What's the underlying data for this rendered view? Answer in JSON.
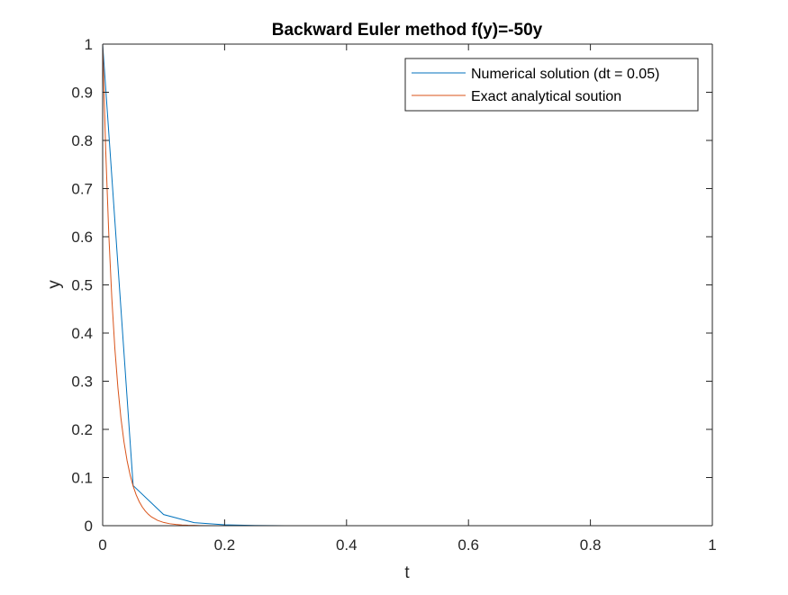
{
  "chart_data": {
    "type": "line",
    "title": "Backward Euler method f(y)=-50y",
    "xlabel": "t",
    "ylabel": "y",
    "xlim": [
      0,
      1
    ],
    "ylim": [
      0,
      1
    ],
    "xticks": [
      0,
      0.2,
      0.4,
      0.6,
      0.8,
      1
    ],
    "xtick_labels": [
      "0",
      "0.2",
      "0.4",
      "0.6",
      "0.8",
      "1"
    ],
    "yticks": [
      0,
      0.1,
      0.2,
      0.3,
      0.4,
      0.5,
      0.6,
      0.7,
      0.8,
      0.9,
      1
    ],
    "ytick_labels": [
      "0",
      "0.1",
      "0.2",
      "0.3",
      "0.4",
      "0.5",
      "0.6",
      "0.7",
      "0.8",
      "0.9",
      "1"
    ],
    "grid": false,
    "legend_position": "top-right",
    "series": [
      {
        "name": "Numerical solution (dt = 0.05)",
        "color": "#0072BD",
        "x": [
          0,
          0.05,
          0.1,
          0.15,
          0.2,
          0.25,
          0.3,
          0.35,
          0.4,
          0.45,
          0.5,
          0.55,
          0.6,
          0.65,
          0.7,
          0.75,
          0.8,
          0.85,
          0.9,
          0.95,
          1.0
        ],
        "y": [
          1,
          0.0833,
          0.0231,
          0.0064,
          0.0018,
          0.0005,
          0.0001,
          0,
          0,
          0,
          0,
          0,
          0,
          0,
          0,
          0,
          0,
          0,
          0,
          0,
          0
        ]
      },
      {
        "name": "Exact analytical soution",
        "color": "#D95319",
        "x": [
          0,
          0.005,
          0.01,
          0.015,
          0.02,
          0.025,
          0.03,
          0.035,
          0.04,
          0.045,
          0.05,
          0.055,
          0.06,
          0.065,
          0.07,
          0.075,
          0.08,
          0.09,
          0.1,
          0.11,
          0.12,
          0.13,
          0.14,
          0.15,
          0.16,
          0.18,
          0.2,
          0.25,
          0.3,
          0.4,
          0.5,
          0.6,
          0.7,
          0.8,
          0.9,
          1.0
        ],
        "y": [
          1,
          0.7788,
          0.6065,
          0.4724,
          0.3679,
          0.2865,
          0.2231,
          0.1738,
          0.1353,
          0.1054,
          0.0821,
          0.0639,
          0.0498,
          0.0388,
          0.0302,
          0.0235,
          0.0183,
          0.0111,
          0.0067,
          0.0041,
          0.0025,
          0.0015,
          0.0009,
          0.0006,
          0.0003,
          0.0001,
          5e-05,
          0,
          0,
          0,
          0,
          0,
          0,
          0,
          0,
          0
        ]
      }
    ]
  }
}
